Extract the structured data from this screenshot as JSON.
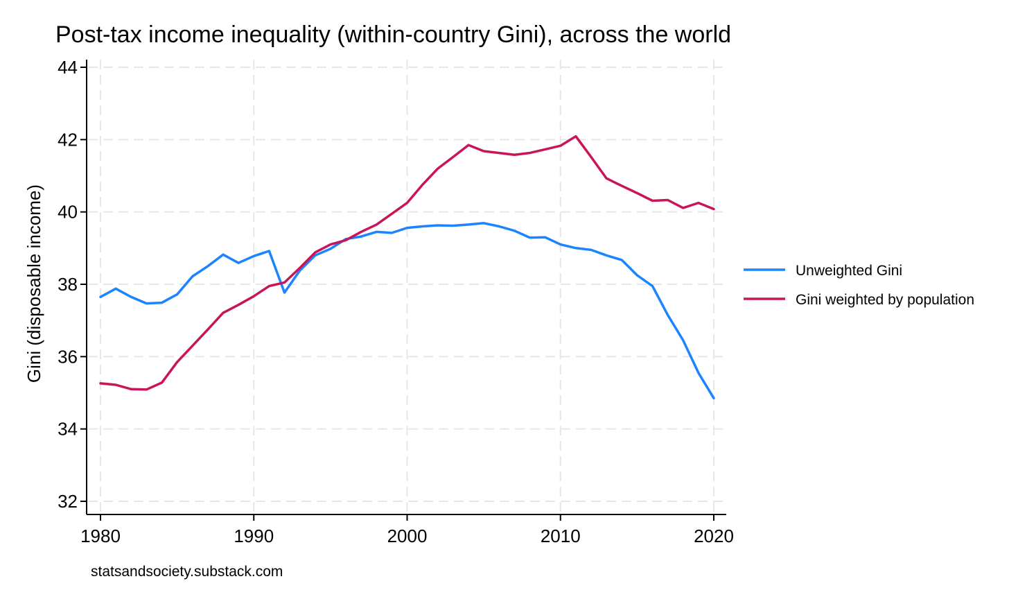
{
  "chart_data": {
    "type": "line",
    "title": "Post-tax income inequality (within-country Gini), across the world",
    "xlabel": "",
    "ylabel": "Gini (disposable income)",
    "xlim": [
      1980,
      2020
    ],
    "ylim": [
      32,
      44
    ],
    "xticks": [
      1980,
      1990,
      2000,
      2010,
      2020
    ],
    "yticks": [
      32,
      34,
      36,
      38,
      40,
      42,
      44
    ],
    "grid": true,
    "legend_position": "right",
    "x": [
      1980,
      1981,
      1982,
      1983,
      1984,
      1985,
      1986,
      1987,
      1988,
      1989,
      1990,
      1991,
      1992,
      1993,
      1994,
      1995,
      1996,
      1997,
      1998,
      1999,
      2000,
      2001,
      2002,
      2003,
      2004,
      2005,
      2006,
      2007,
      2008,
      2009,
      2010,
      2011,
      2012,
      2013,
      2014,
      2015,
      2016,
      2017,
      2018,
      2019,
      2020
    ],
    "series": [
      {
        "name": "Unweighted Gini",
        "color": "#1a85ff",
        "values": [
          37.65,
          37.88,
          37.65,
          37.47,
          37.49,
          37.72,
          38.22,
          38.5,
          38.82,
          38.59,
          38.78,
          38.92,
          37.77,
          38.38,
          38.8,
          38.98,
          39.25,
          39.32,
          39.45,
          39.42,
          39.56,
          39.6,
          39.63,
          39.62,
          39.65,
          39.69,
          39.6,
          39.48,
          39.29,
          39.3,
          39.1,
          39.0,
          38.95,
          38.8,
          38.67,
          38.25,
          37.95,
          37.15,
          36.45,
          35.55,
          34.85
        ]
      },
      {
        "name": "Gini weighted by population",
        "color": "#c8155a",
        "values": [
          35.26,
          35.22,
          35.1,
          35.09,
          35.28,
          35.85,
          36.3,
          36.75,
          37.21,
          37.43,
          37.67,
          37.95,
          38.05,
          38.45,
          38.88,
          39.1,
          39.22,
          39.45,
          39.65,
          39.95,
          40.25,
          40.75,
          41.2,
          41.52,
          41.85,
          41.68,
          41.63,
          41.58,
          41.63,
          41.73,
          41.83,
          42.09,
          41.52,
          40.93,
          40.72,
          40.52,
          40.31,
          40.33,
          40.11,
          40.25,
          40.08
        ]
      }
    ],
    "source": "statsandsociety.substack.com"
  }
}
